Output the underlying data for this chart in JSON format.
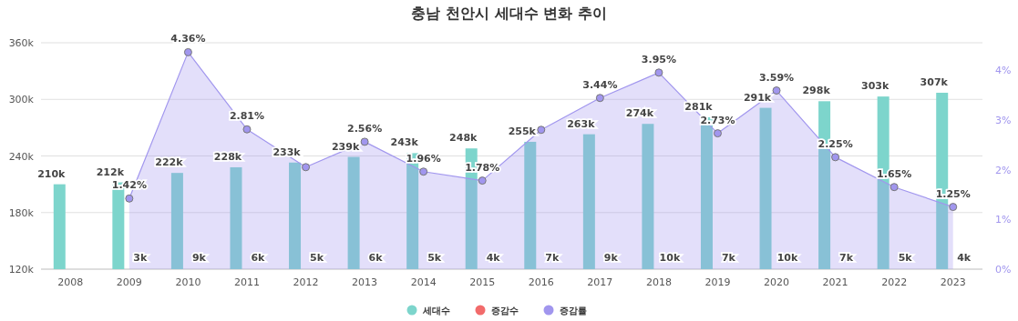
{
  "chart_data": {
    "type": "bar",
    "title": "충남 천안시 세대수 변화 추이",
    "categories": [
      "2008",
      "2009",
      "2010",
      "2011",
      "2012",
      "2013",
      "2014",
      "2015",
      "2016",
      "2017",
      "2018",
      "2019",
      "2020",
      "2021",
      "2022",
      "2023"
    ],
    "series": [
      {
        "name": "세대수",
        "color": "#7dd5cc",
        "values": [
          210,
          212,
          222,
          228,
          233,
          239,
          243,
          248,
          255,
          263,
          274,
          281,
          291,
          298,
          303,
          307
        ],
        "value_labels": [
          "210k",
          "212k",
          "222k",
          "228k",
          "233k",
          "239k",
          "243k",
          "248k",
          "255k",
          "263k",
          "274k",
          "281k",
          "291k",
          "298k",
          "303k",
          "307k"
        ]
      },
      {
        "name": "증감수",
        "color": "#f26b6b",
        "values": [
          null,
          null,
          null,
          null,
          null,
          null,
          null,
          null,
          null,
          null,
          null,
          null,
          null,
          null,
          null,
          null
        ],
        "value_labels": [
          null,
          "3k",
          "9k",
          "6k",
          "5k",
          "6k",
          "5k",
          "4k",
          "7k",
          "9k",
          "10k",
          "7k",
          "10k",
          "7k",
          "5k",
          "4k"
        ]
      },
      {
        "name": "증감률",
        "type": "area",
        "axis": "y2",
        "color": "#a196ee",
        "values": [
          null,
          1.42,
          4.36,
          2.81,
          2.05,
          2.56,
          1.96,
          1.78,
          2.8,
          3.44,
          3.95,
          2.73,
          3.59,
          2.25,
          1.65,
          1.25
        ],
        "value_labels": [
          null,
          "1.42%",
          "4.36%",
          "2.81%",
          null,
          "2.56%",
          "1.96%",
          "1.78%",
          null,
          "3.44%",
          "3.95%",
          "2.73%",
          "3.59%",
          "2.25%",
          "1.65%",
          "1.25%"
        ]
      }
    ],
    "ylim": [
      120,
      360
    ],
    "yticks": [
      {
        "value": 120,
        "label": "120k"
      },
      {
        "value": 180,
        "label": "180k"
      },
      {
        "value": 240,
        "label": "240k"
      },
      {
        "value": 300,
        "label": "300k"
      },
      {
        "value": 360,
        "label": "360k"
      }
    ],
    "y2lim": [
      0,
      4.55
    ],
    "y2ticks": [
      {
        "value": 0,
        "label": "0%"
      },
      {
        "value": 1,
        "label": "1%"
      },
      {
        "value": 2,
        "label": "2%"
      },
      {
        "value": 3,
        "label": "3%"
      },
      {
        "value": 4,
        "label": "4%"
      }
    ],
    "grid": "y",
    "legend": "bottom",
    "marker": "circle"
  }
}
